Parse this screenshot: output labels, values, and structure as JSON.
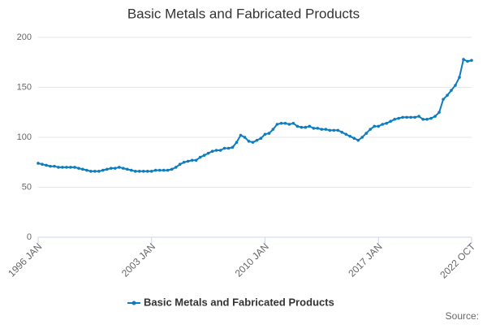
{
  "chart_data": {
    "type": "line",
    "title": "Basic Metals and Fabricated Products",
    "source": "Source:",
    "categories": [
      "1996 JAN",
      null,
      null,
      null,
      null,
      null,
      null,
      null,
      null,
      null,
      null,
      null,
      null,
      null,
      null,
      null,
      null,
      null,
      null,
      null,
      null,
      null,
      null,
      null,
      null,
      null,
      null,
      null,
      "2003 JAN",
      null,
      null,
      null,
      null,
      null,
      null,
      null,
      null,
      null,
      null,
      null,
      null,
      null,
      null,
      null,
      null,
      null,
      null,
      null,
      null,
      null,
      null,
      null,
      null,
      null,
      null,
      null,
      "2010 JAN",
      null,
      null,
      null,
      null,
      null,
      null,
      null,
      null,
      null,
      null,
      null,
      null,
      null,
      null,
      null,
      null,
      null,
      null,
      null,
      null,
      null,
      null,
      null,
      null,
      null,
      null,
      null,
      "2017 JAN",
      null,
      null,
      null,
      null,
      null,
      null,
      null,
      null,
      null,
      null,
      null,
      null,
      null,
      null,
      null,
      null,
      null,
      null,
      null,
      null,
      null,
      null,
      "2022 OCT"
    ],
    "series": [
      {
        "name": "Basic Metals and Fabricated Products",
        "color": "#0d7dbf",
        "values": [
          74,
          73,
          72,
          71,
          71,
          70,
          70,
          70,
          70,
          70,
          69,
          68,
          67,
          66,
          66,
          66,
          67,
          68,
          69,
          69,
          70,
          69,
          68,
          67,
          66,
          66,
          66,
          66,
          66,
          67,
          67,
          67,
          67,
          68,
          70,
          73,
          75,
          76,
          77,
          77,
          80,
          82,
          84,
          86,
          87,
          87,
          89,
          89,
          90,
          95,
          102,
          100,
          96,
          95,
          97,
          99,
          103,
          104,
          108,
          113,
          114,
          114,
          113,
          114,
          111,
          110,
          110,
          111,
          109,
          109,
          108,
          108,
          107,
          107,
          107,
          105,
          103,
          101,
          99,
          97,
          100,
          104,
          108,
          111,
          111,
          113,
          114,
          116,
          118,
          119,
          120,
          120,
          120,
          120,
          121,
          118,
          118,
          119,
          121,
          125,
          138,
          142,
          147,
          152,
          160,
          178,
          176,
          177
        ]
      }
    ],
    "ylim": [
      0,
      200
    ],
    "yticks": [
      0,
      50,
      100,
      150,
      200
    ],
    "grid": true
  }
}
